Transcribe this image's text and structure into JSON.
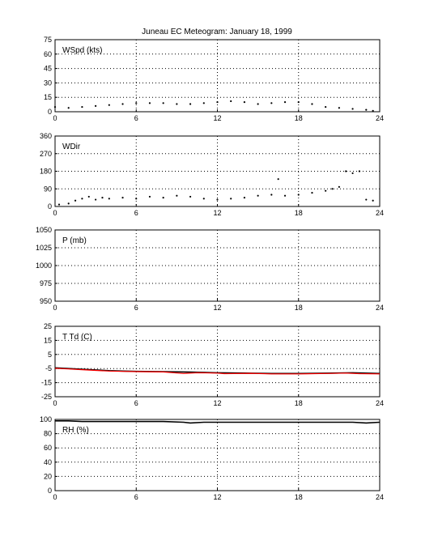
{
  "title": "Juneau EC Meteogram:   January 18, 1999",
  "colors": {
    "axis": "#000000",
    "grid": "#000000",
    "data": "#000000",
    "temperature": "#ff0000",
    "dewpoint": "#000000",
    "background": "#ffffff"
  },
  "chart_data": [
    {
      "type": "scatter",
      "label": "WSpd (kts)",
      "x_ticks": [
        "0",
        "6",
        "12",
        "18",
        "24"
      ],
      "y_ticks": [
        "0",
        "15",
        "30",
        "45",
        "60",
        "75"
      ],
      "xlim": [
        0,
        24
      ],
      "ylim": [
        0,
        75
      ],
      "grid": "dotted",
      "series": [
        {
          "x": [
            0,
            1,
            2,
            3,
            4,
            5,
            6,
            7,
            8,
            9,
            10,
            11,
            12,
            13,
            14,
            15,
            16,
            17,
            18,
            19,
            20,
            21,
            22,
            23,
            23.5
          ],
          "y": [
            5,
            4,
            5,
            6,
            7,
            8,
            9,
            9,
            9,
            8,
            8,
            9,
            10,
            11,
            10,
            8,
            9,
            10,
            10,
            8,
            5,
            4,
            3,
            2,
            1
          ]
        }
      ]
    },
    {
      "type": "scatter",
      "label": "WDir",
      "x_ticks": [
        "0",
        "6",
        "12",
        "18",
        "24"
      ],
      "y_ticks": [
        "0",
        "90",
        "180",
        "270",
        "360"
      ],
      "xlim": [
        0,
        24
      ],
      "ylim": [
        0,
        360
      ],
      "grid": "dotted",
      "series": [
        {
          "x": [
            0.3,
            1,
            1.5,
            2,
            2.5,
            3,
            3.5,
            4,
            5,
            6,
            7,
            8,
            9,
            10,
            11,
            12,
            13,
            14,
            15,
            16,
            16.5,
            17,
            18,
            19,
            20,
            20.5,
            21,
            21.5,
            22,
            22.5,
            23,
            23.5
          ],
          "y": [
            10,
            15,
            30,
            40,
            50,
            35,
            45,
            40,
            45,
            40,
            50,
            45,
            55,
            50,
            40,
            35,
            40,
            45,
            55,
            60,
            140,
            55,
            60,
            70,
            80,
            90,
            100,
            180,
            170,
            180,
            35,
            30
          ]
        }
      ]
    },
    {
      "type": "line",
      "label": "P (mb)",
      "x_ticks": [
        "0",
        "6",
        "12",
        "18",
        "24"
      ],
      "y_ticks": [
        "950",
        "975",
        "1000",
        "1025",
        "1050"
      ],
      "xlim": [
        0,
        24
      ],
      "ylim": [
        950,
        1050
      ],
      "grid": "dotted",
      "series": []
    },
    {
      "type": "line",
      "label": "T Td (C)",
      "x_ticks": [
        "0",
        "6",
        "12",
        "18",
        "24"
      ],
      "y_ticks": [
        "-25",
        "-15",
        "-5",
        "5",
        "15",
        "25"
      ],
      "xlim": [
        0,
        24
      ],
      "ylim": [
        -25,
        25
      ],
      "grid": "dotted",
      "series": [
        {
          "x": [
            0,
            1,
            2,
            3,
            4,
            5,
            6,
            8,
            10,
            12,
            14,
            16,
            18,
            20,
            22,
            24
          ],
          "y": [
            -4.5,
            -5,
            -5.5,
            -6,
            -6.5,
            -6.8,
            -7,
            -7.2,
            -7.5,
            -8,
            -8.2,
            -8.5,
            -8.5,
            -8.3,
            -8,
            -8.5
          ]
        },
        {
          "x": [
            0,
            1,
            2,
            3,
            4,
            5,
            6,
            8,
            9.5,
            10.5,
            12,
            12.5,
            14.5,
            16,
            18,
            20,
            21.5,
            22.5,
            24
          ],
          "y": [
            -4.8,
            -5.3,
            -5.8,
            -6.3,
            -6.8,
            -7,
            -7.2,
            -7.4,
            -8.5,
            -8,
            -8.2,
            -8.6,
            -8.4,
            -8.8,
            -8.8,
            -8.5,
            -8.2,
            -8.6,
            -8.8
          ]
        }
      ]
    },
    {
      "type": "line",
      "label": "RH (%)",
      "x_ticks": [
        "0",
        "6",
        "12",
        "18",
        "24"
      ],
      "y_ticks": [
        "0",
        "20",
        "40",
        "60",
        "80",
        "100"
      ],
      "xlim": [
        0,
        24
      ],
      "ylim": [
        0,
        100
      ],
      "grid": "dotted",
      "series": [
        {
          "x": [
            0,
            1,
            2,
            3,
            4,
            5,
            6,
            8,
            9.5,
            10,
            11,
            12,
            14,
            16,
            18,
            20,
            22,
            23,
            24
          ],
          "y": [
            98,
            98,
            97,
            97,
            97,
            97,
            97,
            97,
            96,
            95,
            96,
            96,
            96,
            96,
            96,
            96,
            96,
            95,
            96
          ]
        }
      ]
    }
  ]
}
